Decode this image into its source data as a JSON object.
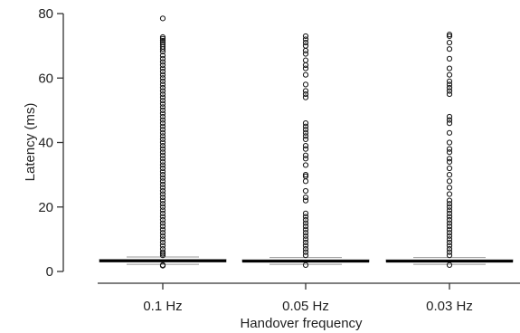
{
  "chart_data": {
    "type": "boxplot",
    "xlabel": "Handover frequency",
    "ylabel": "Latency (ms)",
    "ylim": [
      0,
      80
    ],
    "yticks": [
      0,
      20,
      40,
      60,
      80
    ],
    "categories": [
      "0.1 Hz",
      "0.05 Hz",
      "0.03 Hz"
    ],
    "boxes": [
      {
        "category": "0.1 Hz",
        "whisker_low": 2.2,
        "q1": 3.0,
        "median": 3.3,
        "q3": 3.7,
        "whisker_high": 4.5,
        "outliers": [
          78.5,
          72.7,
          72.2,
          71.6,
          71.0,
          70.4,
          69.7,
          69.0,
          68.2,
          67.0,
          66.0,
          65.0,
          64.0,
          63.0,
          62.0,
          61.0,
          60.0,
          59.0,
          58.0,
          57.0,
          56.0,
          55.0,
          54.0,
          53.0,
          52.0,
          51.0,
          50.0,
          49.0,
          48.0,
          47.0,
          46.0,
          45.0,
          44.0,
          43.0,
          42.0,
          41.0,
          40.0,
          39.0,
          38.0,
          37.0,
          36.0,
          35.0,
          34.0,
          33.0,
          32.0,
          31.0,
          30.0,
          29.0,
          28.0,
          27.0,
          26.0,
          25.0,
          24.0,
          23.0,
          22.0,
          21.0,
          20.0,
          19.0,
          18.0,
          17.0,
          16.0,
          15.0,
          14.0,
          13.0,
          12.0,
          11.0,
          10.0,
          9.0,
          8.0,
          7.0,
          6.0,
          5.5,
          5.0,
          2.0,
          1.8
        ]
      },
      {
        "category": "0.05 Hz",
        "whisker_low": 2.2,
        "q1": 3.0,
        "median": 3.2,
        "q3": 3.6,
        "whisker_high": 4.3,
        "outliers": [
          73.0,
          72.0,
          71.0,
          70.0,
          68.5,
          67.5,
          65.5,
          64.0,
          63.0,
          61.0,
          58.0,
          56.0,
          55.0,
          54.0,
          46.0,
          45.0,
          44.0,
          43.0,
          42.0,
          41.0,
          39.0,
          38.0,
          36.0,
          35.0,
          33.0,
          30.0,
          29.5,
          28.0,
          25.0,
          23.0,
          22.0,
          18.0,
          17.0,
          16.0,
          15.0,
          14.0,
          13.0,
          12.0,
          11.0,
          10.0,
          9.0,
          8.0,
          7.0,
          6.0,
          5.0,
          2.0
        ]
      },
      {
        "category": "0.03 Hz",
        "whisker_low": 2.2,
        "q1": 3.0,
        "median": 3.2,
        "q3": 3.6,
        "whisker_high": 4.3,
        "outliers": [
          73.5,
          73.0,
          71.0,
          69.0,
          66.0,
          63.0,
          61.0,
          59.0,
          58.0,
          57.0,
          56.0,
          55.0,
          48.0,
          47.0,
          46.0,
          43.0,
          40.0,
          38.0,
          37.0,
          35.0,
          34.0,
          32.0,
          30.0,
          28.0,
          26.0,
          24.0,
          22.0,
          21.0,
          20.0,
          19.0,
          18.0,
          17.0,
          16.0,
          15.0,
          14.0,
          13.0,
          12.0,
          11.0,
          10.0,
          9.0,
          8.0,
          7.0,
          6.0,
          5.0,
          2.0
        ]
      }
    ]
  }
}
